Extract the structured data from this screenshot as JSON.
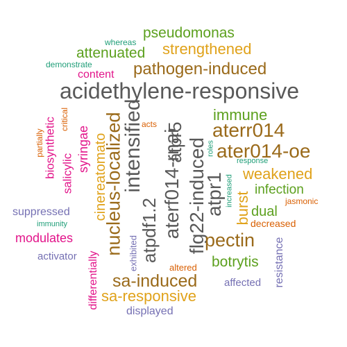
{
  "colors": {
    "gray": "#595959",
    "brown": "#9a6a1a",
    "gold": "#e0a21a",
    "green": "#5ca01e",
    "teal": "#1f9e78",
    "pink": "#e2148a",
    "purple": "#7570b3",
    "orange": "#d95f02"
  },
  "words": [
    {
      "text": "acidethylene-responsive",
      "color": "gray"
    },
    {
      "text": "aterf014-rnai",
      "color": "gray"
    },
    {
      "text": "flg22-induced",
      "color": "gray"
    },
    {
      "text": "atpdf1.2",
      "color": "gray"
    },
    {
      "text": "atpr5",
      "color": "gray"
    },
    {
      "text": "nucleus-localized",
      "color": "brown"
    },
    {
      "text": "intensified",
      "color": "gray"
    },
    {
      "text": "pathogen-induced",
      "color": "brown"
    },
    {
      "text": "ater014-oe",
      "color": "brown"
    },
    {
      "text": "aterr014",
      "color": "brown"
    },
    {
      "text": "atpr1",
      "color": "gray"
    },
    {
      "text": "strengthened",
      "color": "gold"
    },
    {
      "text": "pseudomonas",
      "color": "green"
    },
    {
      "text": "attenuated",
      "color": "green"
    },
    {
      "text": "sa-induced",
      "color": "brown"
    },
    {
      "text": "sa-responsive",
      "color": "gold"
    },
    {
      "text": "pectin",
      "color": "brown"
    },
    {
      "text": "weakened",
      "color": "gold"
    },
    {
      "text": "cinereatomato",
      "color": "gold"
    },
    {
      "text": "immune",
      "color": "green"
    },
    {
      "text": "burst",
      "color": "gold"
    },
    {
      "text": "botrytis",
      "color": "green"
    },
    {
      "text": "infection",
      "color": "green"
    },
    {
      "text": "dual",
      "color": "green"
    },
    {
      "text": "syringae",
      "color": "pink"
    },
    {
      "text": "modulates",
      "color": "pink"
    },
    {
      "text": "content",
      "color": "pink"
    },
    {
      "text": "biosynthetic",
      "color": "pink"
    },
    {
      "text": "salicylic",
      "color": "pink"
    },
    {
      "text": "differentially",
      "color": "pink"
    },
    {
      "text": "resistance",
      "color": "purple"
    },
    {
      "text": "suppressed",
      "color": "purple"
    },
    {
      "text": "activator",
      "color": "purple"
    },
    {
      "text": "affected",
      "color": "purple"
    },
    {
      "text": "displayed",
      "color": "purple"
    },
    {
      "text": "exhibited",
      "color": "purple"
    },
    {
      "text": "decreased",
      "color": "orange"
    },
    {
      "text": "jasmonic",
      "color": "orange"
    },
    {
      "text": "altered",
      "color": "orange"
    },
    {
      "text": "partially",
      "color": "orange"
    },
    {
      "text": "critical",
      "color": "orange"
    },
    {
      "text": "acts",
      "color": "orange"
    },
    {
      "text": "whereas",
      "color": "teal"
    },
    {
      "text": "demonstrate",
      "color": "teal"
    },
    {
      "text": "immunity",
      "color": "teal"
    },
    {
      "text": "roles",
      "color": "teal"
    },
    {
      "text": "increased",
      "color": "teal"
    },
    {
      "text": "response",
      "color": "teal"
    }
  ]
}
